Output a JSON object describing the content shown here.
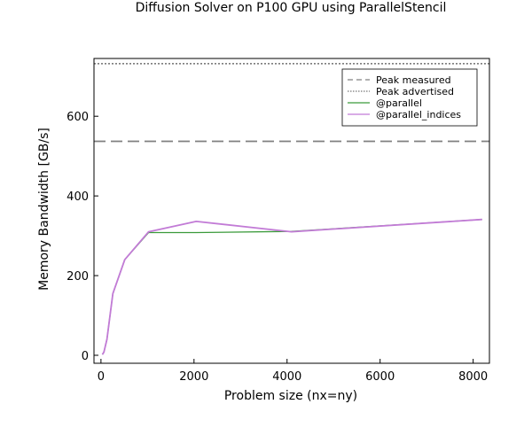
{
  "chart_data": {
    "type": "line",
    "title": "Diffusion Solver on P100 GPU using ParallelStencil",
    "xlabel": "Problem size (nx=ny)",
    "ylabel": "Memory Bandwidth [GB/s]",
    "xlim": [
      -150,
      8350
    ],
    "ylim": [
      -20,
      745
    ],
    "xticks": [
      0,
      2000,
      4000,
      6000,
      8000
    ],
    "yticks": [
      0,
      200,
      400,
      600
    ],
    "grid": false,
    "legend_position": "top-right",
    "reference_lines": [
      {
        "name": "Peak measured",
        "value": 537,
        "style": "dashed",
        "color": "#808080"
      },
      {
        "name": "Peak advertised",
        "value": 732,
        "style": "dotted",
        "color": "#555555"
      }
    ],
    "series": [
      {
        "name": "@parallel",
        "color": "#3a9a3a",
        "x": [
          32,
          64,
          128,
          256,
          512,
          1024,
          2048,
          4096,
          8192
        ],
        "y": [
          2,
          8,
          40,
          155,
          240,
          308,
          308,
          311,
          341
        ]
      },
      {
        "name": "@parallel_indices",
        "color": "#c27bd6",
        "x": [
          32,
          64,
          128,
          256,
          512,
          1024,
          2048,
          4096,
          8192
        ],
        "y": [
          2,
          8,
          40,
          155,
          240,
          310,
          336,
          310,
          341
        ]
      }
    ]
  }
}
